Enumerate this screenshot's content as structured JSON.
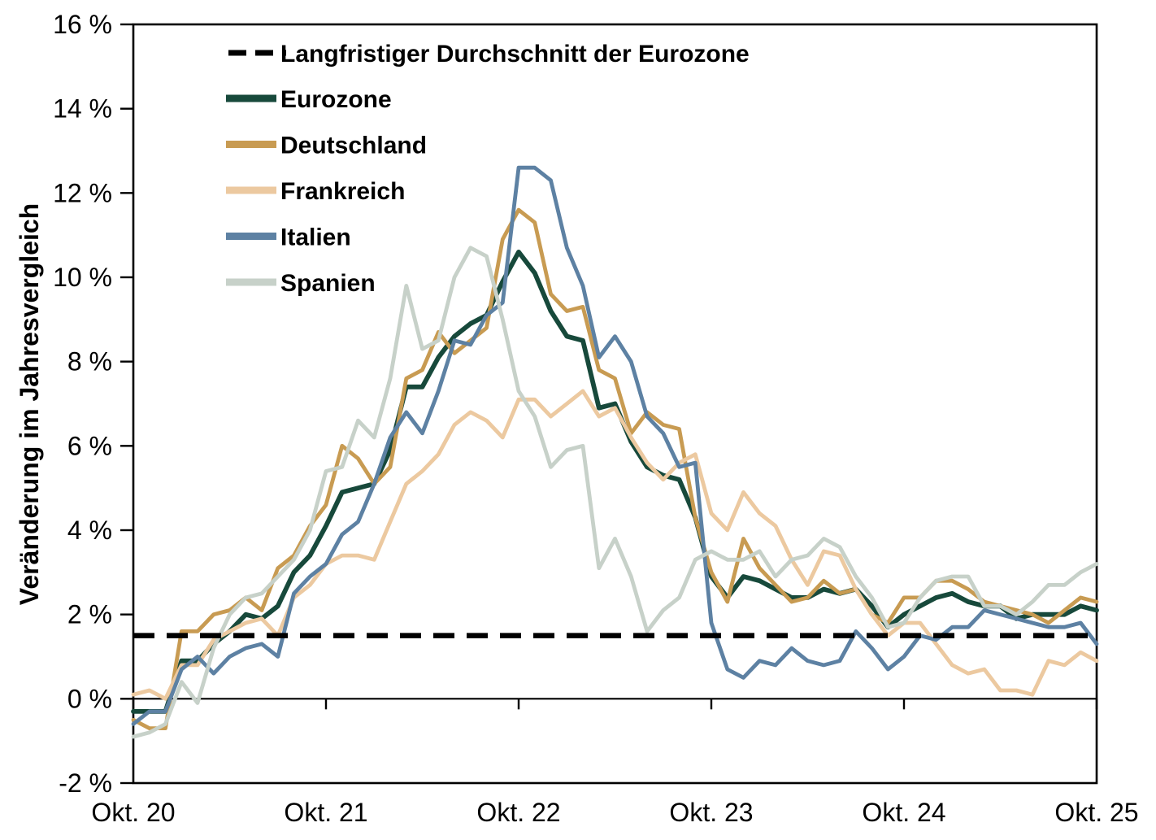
{
  "chart_data": {
    "type": "line",
    "title": "",
    "ylabel": "Veränderung im Jahresvergleich",
    "xlabel": "",
    "ylim": [
      -2,
      16
    ],
    "ytick_values": [
      16,
      14,
      12,
      10,
      8,
      6,
      4,
      2,
      0,
      -2
    ],
    "ytick_labels": [
      "16 %",
      "14 %",
      "12 %",
      "10 %",
      "8 %",
      "6 %",
      "4 %",
      "2 %",
      "0 %",
      "-2 %"
    ],
    "x_tick_months": [
      0,
      12,
      24,
      36,
      48,
      60
    ],
    "x_tick_labels": [
      "Okt. 20",
      "Okt. 21",
      "Okt. 22",
      "Okt. 23",
      "Okt. 24",
      "Okt. 25"
    ],
    "x_frequency": "monthly",
    "grid": "off",
    "legend_position": "top-left-inside",
    "axis_color": "#000000",
    "background_color": "#ffffff",
    "reference_line": {
      "label": "Langfristiger Durchschnitt der Eurozone",
      "value": 1.5,
      "color": "#000000",
      "style": "dashed"
    },
    "series": [
      {
        "name": "Eurozone",
        "color": "#17493b",
        "width": 5.8,
        "values": [
          -0.3,
          -0.3,
          -0.3,
          0.9,
          0.9,
          1.3,
          1.6,
          2.0,
          1.9,
          2.2,
          3.0,
          3.4,
          4.1,
          4.9,
          5.0,
          5.1,
          5.9,
          7.4,
          7.4,
          8.1,
          8.6,
          8.9,
          9.1,
          9.9,
          10.6,
          10.1,
          9.2,
          8.6,
          8.5,
          6.9,
          7.0,
          6.1,
          5.5,
          5.3,
          5.2,
          4.3,
          2.9,
          2.4,
          2.9,
          2.8,
          2.6,
          2.4,
          2.4,
          2.6,
          2.5,
          2.6,
          2.2,
          1.7,
          2.0,
          2.2,
          2.4,
          2.5,
          2.3,
          2.2,
          2.2,
          1.9,
          2.0,
          2.0,
          2.0,
          2.2,
          2.1
        ]
      },
      {
        "name": "Deutschland",
        "color": "#c89b52",
        "width": 4.8,
        "values": [
          -0.5,
          -0.7,
          -0.7,
          1.6,
          1.6,
          2.0,
          2.1,
          2.4,
          2.1,
          3.1,
          3.4,
          4.1,
          4.6,
          6.0,
          5.7,
          5.1,
          5.5,
          7.6,
          7.8,
          8.7,
          8.2,
          8.5,
          8.8,
          10.9,
          11.6,
          11.3,
          9.6,
          9.2,
          9.3,
          7.8,
          7.6,
          6.3,
          6.8,
          6.5,
          6.4,
          4.3,
          3.0,
          2.3,
          3.8,
          3.1,
          2.7,
          2.3,
          2.4,
          2.8,
          2.5,
          2.6,
          2.0,
          1.8,
          2.4,
          2.4,
          2.8,
          2.8,
          2.6,
          2.3,
          2.2,
          2.1,
          2.0,
          1.8,
          2.1,
          2.4,
          2.3
        ]
      },
      {
        "name": "Frankreich",
        "color": "#ecc9a0",
        "width": 4.8,
        "values": [
          0.1,
          0.2,
          0.0,
          0.8,
          0.8,
          1.4,
          1.6,
          1.8,
          1.9,
          1.5,
          2.4,
          2.7,
          3.2,
          3.4,
          3.4,
          3.3,
          4.2,
          5.1,
          5.4,
          5.8,
          6.5,
          6.8,
          6.6,
          6.2,
          7.1,
          7.1,
          6.7,
          7.0,
          7.3,
          6.7,
          6.9,
          6.2,
          5.6,
          5.2,
          5.6,
          5.8,
          4.4,
          4.0,
          4.9,
          4.4,
          4.1,
          3.3,
          2.7,
          3.5,
          3.4,
          2.6,
          2.0,
          1.5,
          1.8,
          1.8,
          1.3,
          0.8,
          0.6,
          0.7,
          0.2,
          0.2,
          0.1,
          0.9,
          0.8,
          1.1,
          0.9
        ]
      },
      {
        "name": "Italien",
        "color": "#5d81a3",
        "width": 4.8,
        "values": [
          -0.6,
          -0.3,
          -0.3,
          0.7,
          1.0,
          0.6,
          1.0,
          1.2,
          1.3,
          1.0,
          2.5,
          2.9,
          3.2,
          3.9,
          4.2,
          5.1,
          6.2,
          6.8,
          6.3,
          7.3,
          8.5,
          8.4,
          9.1,
          9.4,
          12.6,
          12.6,
          12.3,
          10.7,
          9.8,
          8.1,
          8.6,
          8.0,
          6.7,
          6.3,
          5.5,
          5.6,
          1.8,
          0.7,
          0.5,
          0.9,
          0.8,
          1.2,
          0.9,
          0.8,
          0.9,
          1.6,
          1.2,
          0.7,
          1.0,
          1.5,
          1.4,
          1.7,
          1.7,
          2.1,
          2.0,
          1.9,
          1.8,
          1.7,
          1.7,
          1.8,
          1.3
        ]
      },
      {
        "name": "Spanien",
        "color": "#c7d1c9",
        "width": 4.8,
        "values": [
          -0.9,
          -0.8,
          -0.6,
          0.4,
          -0.1,
          1.2,
          2.0,
          2.4,
          2.5,
          2.9,
          3.3,
          4.0,
          5.4,
          5.5,
          6.6,
          6.2,
          7.6,
          9.8,
          8.3,
          8.5,
          10.0,
          10.7,
          10.5,
          9.0,
          7.3,
          6.7,
          5.5,
          5.9,
          6.0,
          3.1,
          3.8,
          2.9,
          1.6,
          2.1,
          2.4,
          3.3,
          3.5,
          3.3,
          3.3,
          3.5,
          2.9,
          3.3,
          3.4,
          3.8,
          3.6,
          2.9,
          2.4,
          1.7,
          1.8,
          2.4,
          2.8,
          2.9,
          2.9,
          2.2,
          2.2,
          2.0,
          2.3,
          2.7,
          2.7,
          3.0,
          3.2
        ]
      }
    ]
  }
}
